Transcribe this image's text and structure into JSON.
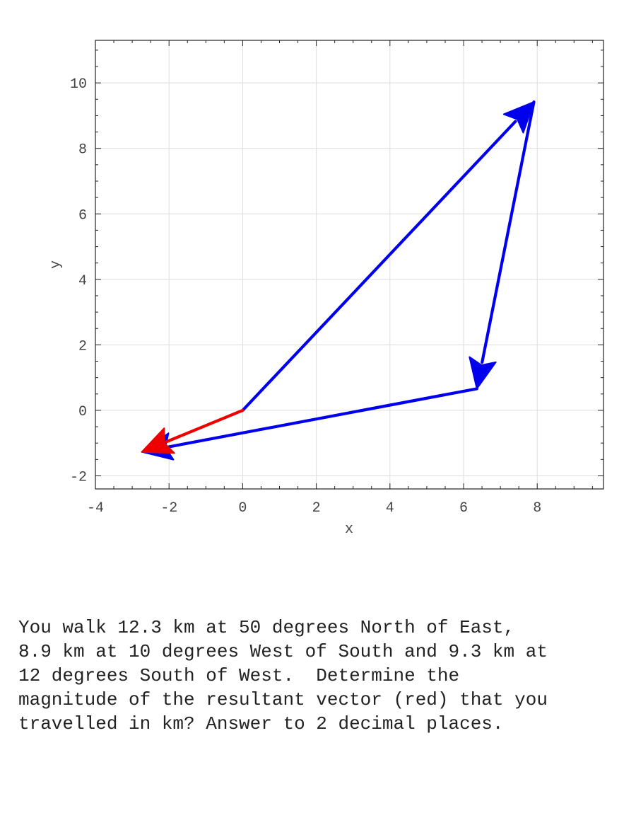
{
  "chart_data": {
    "type": "vector-diagram",
    "xlabel": "x",
    "ylabel": "y",
    "xlim": [
      -4,
      9.8
    ],
    "ylim": [
      -2.4,
      11.3
    ],
    "xticks": [
      -4,
      -2,
      0,
      2,
      4,
      6,
      8
    ],
    "yticks": [
      -2,
      0,
      2,
      4,
      6,
      8,
      10
    ],
    "xtick_labels": [
      "-4",
      "-2",
      "0",
      "2",
      "4",
      "6",
      "8"
    ],
    "ytick_labels": [
      "-2",
      "0",
      "2",
      "4",
      "6",
      "8",
      "10"
    ],
    "grid": true,
    "vectors": [
      {
        "from": [
          0,
          0
        ],
        "to": [
          7.91,
          9.42
        ],
        "color": "#0000ee"
      },
      {
        "from": [
          7.91,
          9.42
        ],
        "to": [
          6.36,
          0.66
        ],
        "color": "#0000ee"
      },
      {
        "from": [
          6.36,
          0.66
        ],
        "to": [
          -2.74,
          -1.27
        ],
        "color": "#0000ee"
      },
      {
        "from": [
          0,
          0
        ],
        "to": [
          -2.74,
          -1.27
        ],
        "color": "#ee0000"
      }
    ]
  },
  "question": "You walk 12.3 km at 50 degrees North of East,\n8.9 km at 10 degrees West of South and 9.3 km at\n12 degrees South of West.  Determine the\nmagnitude of the resultant vector (red) that you\ntravelled in km? Answer to 2 decimal places."
}
